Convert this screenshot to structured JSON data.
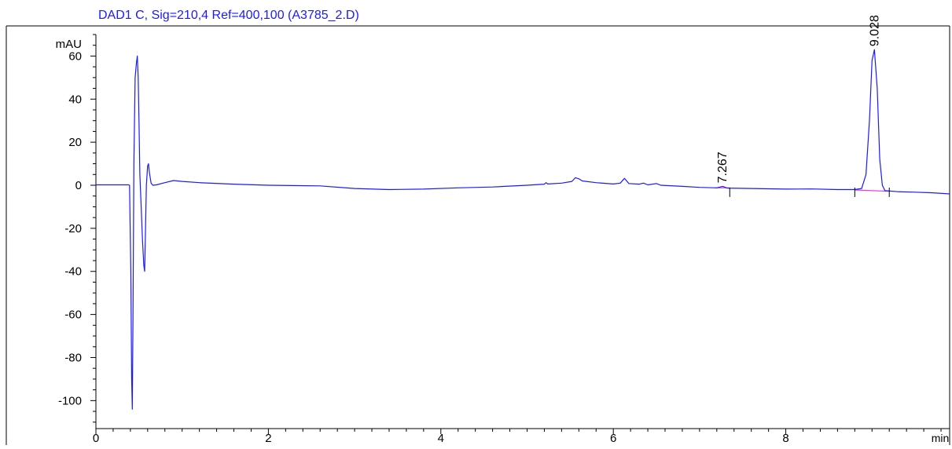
{
  "chart_data": {
    "type": "line",
    "title": "DAD1 C, Sig=210,4 Ref=400,100 (A3785_2.D)",
    "ylabel": "mAU",
    "xlabel": "min",
    "xlim": [
      0,
      9.9
    ],
    "ylim": [
      -113,
      74
    ],
    "x_ticks": [
      0,
      2,
      4,
      6,
      8
    ],
    "y_ticks": [
      60,
      40,
      20,
      0,
      -20,
      -40,
      -60,
      -80,
      -100
    ],
    "grid": false,
    "series": [
      {
        "color": "#1a1aff",
        "points": [
          [
            0,
            0.2
          ],
          [
            0.38,
            0.2
          ],
          [
            0.39,
            0
          ],
          [
            0.405,
            -40
          ],
          [
            0.415,
            -90
          ],
          [
            0.422,
            -104
          ],
          [
            0.43,
            -60
          ],
          [
            0.44,
            10
          ],
          [
            0.455,
            50
          ],
          [
            0.47,
            57
          ],
          [
            0.48,
            60
          ],
          [
            0.49,
            50
          ],
          [
            0.5,
            30
          ],
          [
            0.51,
            5
          ],
          [
            0.525,
            -10
          ],
          [
            0.54,
            -25
          ],
          [
            0.555,
            -37
          ],
          [
            0.565,
            -40
          ],
          [
            0.575,
            -20
          ],
          [
            0.585,
            0
          ],
          [
            0.6,
            9
          ],
          [
            0.61,
            10
          ],
          [
            0.62,
            6
          ],
          [
            0.64,
            1
          ],
          [
            0.66,
            0
          ],
          [
            0.7,
            0.2
          ],
          [
            0.8,
            1.2
          ],
          [
            0.9,
            2.2
          ],
          [
            1.0,
            1.8
          ],
          [
            1.2,
            1.2
          ],
          [
            1.6,
            0.5
          ],
          [
            2.0,
            0
          ],
          [
            2.6,
            -0.3
          ],
          [
            3.0,
            -1.5
          ],
          [
            3.4,
            -2
          ],
          [
            3.8,
            -1.8
          ],
          [
            4.2,
            -1.2
          ],
          [
            4.6,
            -0.8
          ],
          [
            5.0,
            0
          ],
          [
            5.2,
            0.5
          ],
          [
            5.22,
            1.2
          ],
          [
            5.24,
            0.6
          ],
          [
            5.4,
            1
          ],
          [
            5.52,
            1.8
          ],
          [
            5.56,
            3.5
          ],
          [
            5.6,
            3
          ],
          [
            5.64,
            2
          ],
          [
            5.8,
            1.2
          ],
          [
            6.0,
            0.6
          ],
          [
            6.08,
            1
          ],
          [
            6.13,
            3.2
          ],
          [
            6.18,
            0.8
          ],
          [
            6.3,
            0.5
          ],
          [
            6.35,
            1
          ],
          [
            6.4,
            0.2
          ],
          [
            6.5,
            0.8
          ],
          [
            6.55,
            0
          ],
          [
            6.8,
            -0.5
          ],
          [
            7.0,
            -1
          ],
          [
            7.2,
            -1.2
          ],
          [
            7.267,
            -0.5
          ],
          [
            7.32,
            -1.3
          ],
          [
            7.6,
            -1.5
          ],
          [
            8.0,
            -1.8
          ],
          [
            8.3,
            -1.7
          ],
          [
            8.6,
            -2
          ],
          [
            8.8,
            -2
          ],
          [
            8.88,
            -1.5
          ],
          [
            8.93,
            5
          ],
          [
            8.97,
            30
          ],
          [
            9.0,
            58
          ],
          [
            9.028,
            63
          ],
          [
            9.06,
            45
          ],
          [
            9.09,
            12
          ],
          [
            9.12,
            0
          ],
          [
            9.15,
            -2.5
          ],
          [
            9.3,
            -3
          ],
          [
            9.5,
            -3.2
          ],
          [
            9.7,
            -3.5
          ],
          [
            9.9,
            -4
          ]
        ]
      }
    ],
    "baselines": [
      {
        "color": "#e23ad8",
        "points": [
          [
            7.18,
            -1.2
          ],
          [
            7.35,
            -1.2
          ]
        ]
      },
      {
        "color": "#e23ad8",
        "points": [
          [
            8.8,
            -2.2
          ],
          [
            9.2,
            -2.8
          ]
        ]
      }
    ],
    "peak_labels": [
      {
        "x": 7.267,
        "y": -0.5,
        "text": "7.267"
      },
      {
        "x": 9.028,
        "y": 63,
        "text": "9.028"
      }
    ],
    "integration_marks": [
      7.35,
      8.8,
      9.2
    ]
  }
}
